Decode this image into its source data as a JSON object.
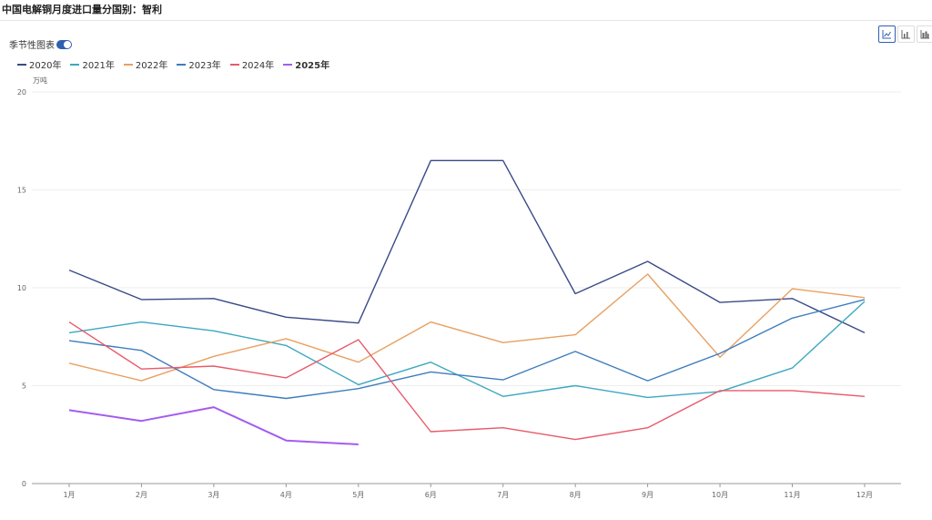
{
  "page": {
    "title": "中国电解铜月度进口量分国别：智利"
  },
  "controls": {
    "seasonal_label": "季节性图表",
    "seasonal_on": true
  },
  "view_buttons": [
    {
      "icon": "line-chart-icon",
      "active": true
    },
    {
      "icon": "bar-chart-icon",
      "active": false
    },
    {
      "icon": "stacked-bar-chart-icon",
      "active": false
    }
  ],
  "chart_data": {
    "type": "line",
    "ylabel": "万吨",
    "ylim": [
      0,
      20
    ],
    "yticks": [
      "0",
      "5",
      "10",
      "15",
      "20"
    ],
    "categories": [
      "1月",
      "2月",
      "3月",
      "4月",
      "5月",
      "6月",
      "7月",
      "8月",
      "9月",
      "10月",
      "11月",
      "12月"
    ],
    "grid": true,
    "legend_position": "top-left",
    "series": [
      {
        "name": "2020年",
        "color": "#3a4a86",
        "bold": false,
        "values": [
          10.9,
          9.4,
          9.45,
          8.5,
          8.2,
          16.5,
          16.5,
          9.7,
          11.35,
          9.25,
          9.45,
          7.7
        ]
      },
      {
        "name": "2021年",
        "color": "#3ba8c0",
        "bold": false,
        "values": [
          7.7,
          8.25,
          7.8,
          7.05,
          5.05,
          6.2,
          4.45,
          5.0,
          4.4,
          4.7,
          5.9,
          9.3
        ]
      },
      {
        "name": "2022年",
        "color": "#e8a060",
        "bold": false,
        "values": [
          6.15,
          5.25,
          6.5,
          7.4,
          6.2,
          8.25,
          7.2,
          7.6,
          10.7,
          6.45,
          9.95,
          9.5
        ]
      },
      {
        "name": "2023年",
        "color": "#3e7dbd",
        "bold": false,
        "values": [
          7.3,
          6.8,
          4.8,
          4.35,
          4.85,
          5.7,
          5.3,
          6.75,
          5.25,
          6.65,
          8.45,
          9.4
        ]
      },
      {
        "name": "2024年",
        "color": "#e85a6a",
        "bold": false,
        "values": [
          8.25,
          5.85,
          6.0,
          5.4,
          7.35,
          2.65,
          2.85,
          2.25,
          2.85,
          4.75,
          4.75,
          4.45
        ]
      },
      {
        "name": "2025年",
        "color": "#a45cf0",
        "bold": true,
        "values": [
          3.75,
          3.2,
          3.9,
          2.2,
          2.0,
          null,
          null,
          null,
          null,
          null,
          null,
          null
        ]
      }
    ]
  }
}
